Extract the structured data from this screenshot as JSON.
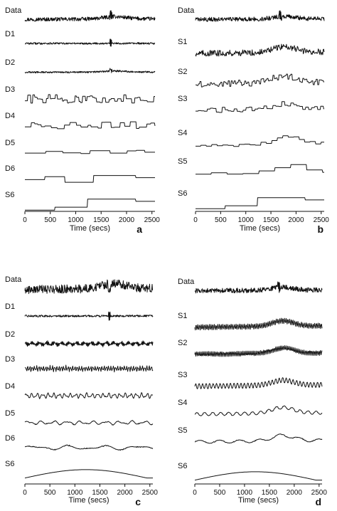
{
  "chart_data": [
    {
      "panel": "a",
      "type": "line",
      "rows": [
        {
          "name": "Data",
          "kind": "noisy",
          "period": 0,
          "amp": 1.0
        },
        {
          "name": "D1",
          "kind": "spiky",
          "period": 1,
          "amp": 0.55
        },
        {
          "name": "D2",
          "kind": "noisy",
          "period": 2,
          "amp": 0.45
        },
        {
          "name": "D3",
          "kind": "step",
          "period": 55,
          "amp": 0.55
        },
        {
          "name": "D4",
          "kind": "step",
          "period": 110,
          "amp": 0.45
        },
        {
          "name": "D5",
          "kind": "step",
          "period": 320,
          "amp": 0.25
        },
        {
          "name": "D6",
          "kind": "step",
          "period": 640,
          "amp": 0.55
        },
        {
          "name": "S6",
          "kind": "stepramp",
          "period": 640,
          "amp": 0.75
        }
      ],
      "xlabel": "Time (secs)",
      "xticks": [
        0,
        500,
        1000,
        1500,
        2000,
        2500
      ],
      "xlim": [
        0,
        2560
      ]
    },
    {
      "panel": "b",
      "type": "line",
      "rows": [
        {
          "name": "Data",
          "kind": "noisy",
          "period": 0,
          "amp": 1.0
        },
        {
          "name": "S1",
          "kind": "trendstep",
          "period": 12,
          "amp": 0.9
        },
        {
          "name": "S2",
          "kind": "trendstep",
          "period": 25,
          "amp": 0.9
        },
        {
          "name": "S3",
          "kind": "trendstep",
          "period": 55,
          "amp": 0.85
        },
        {
          "name": "S4",
          "kind": "trendstep",
          "period": 110,
          "amp": 0.85
        },
        {
          "name": "S5",
          "kind": "trendstep",
          "period": 320,
          "amp": 0.8
        },
        {
          "name": "S6",
          "kind": "stepramp",
          "period": 640,
          "amp": 0.75
        }
      ],
      "xlabel": "Time (secs)",
      "xticks": [
        0,
        500,
        1000,
        1500,
        2000,
        2500
      ],
      "xlim": [
        0,
        2560
      ]
    },
    {
      "panel": "c",
      "type": "line",
      "rows": [
        {
          "name": "Data",
          "kind": "noisy",
          "period": 0,
          "amp": 1.0
        },
        {
          "name": "D1",
          "kind": "spiky",
          "period": 1,
          "amp": 0.55
        },
        {
          "name": "D2",
          "kind": "wave",
          "period": 18,
          "amp": 0.4
        },
        {
          "name": "D3",
          "kind": "wave",
          "period": 45,
          "amp": 0.45
        },
        {
          "name": "D4",
          "kind": "wave",
          "period": 110,
          "amp": 0.4
        },
        {
          "name": "D5",
          "kind": "wave",
          "period": 260,
          "amp": 0.3
        },
        {
          "name": "D6",
          "kind": "wave",
          "period": 700,
          "amp": 0.35
        },
        {
          "name": "S6",
          "kind": "smooth",
          "period": 2600,
          "amp": 0.6
        }
      ],
      "xlabel": "Time (secs)",
      "xticks": [
        0,
        500,
        1000,
        1500,
        2000,
        2500
      ],
      "xlim": [
        0,
        2560
      ]
    },
    {
      "panel": "d",
      "type": "line",
      "rows": [
        {
          "name": "Data",
          "kind": "noisy",
          "period": 0,
          "amp": 1.0
        },
        {
          "name": "S1",
          "kind": "trendwave",
          "period": 14,
          "amp": 0.9
        },
        {
          "name": "S2",
          "kind": "trendwave",
          "period": 30,
          "amp": 0.85
        },
        {
          "name": "S3",
          "kind": "trendwave",
          "period": 70,
          "amp": 0.85
        },
        {
          "name": "S4",
          "kind": "trendwave",
          "period": 160,
          "amp": 0.8
        },
        {
          "name": "S5",
          "kind": "trendwave",
          "period": 400,
          "amp": 0.75
        },
        {
          "name": "S6",
          "kind": "smooth",
          "period": 2600,
          "amp": 0.6
        }
      ],
      "xlabel": "Time (secs)",
      "xticks": [
        0,
        500,
        1000,
        1500,
        2000,
        2500
      ],
      "xlim": [
        0,
        2560
      ]
    }
  ]
}
